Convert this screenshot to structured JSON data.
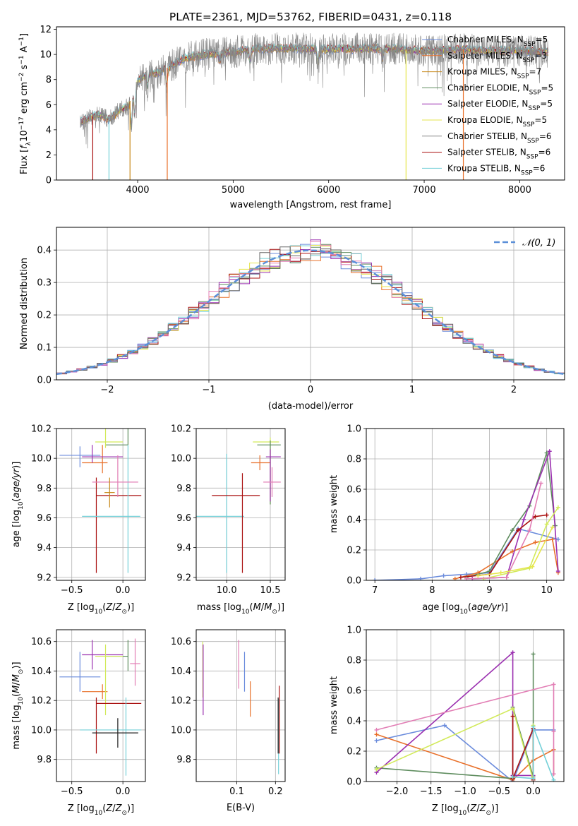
{
  "title": "PLATE=2361, MJD=53762, FIBERID=0431, z=0.118",
  "colors": [
    "#6a8bdc",
    "#e8702a",
    "#c8891b",
    "#5f8d5f",
    "#9b30b0",
    "#e6e64c",
    "#666666",
    "#aa1111",
    "#74d0d8",
    "#e27eb5",
    "#d2ea5a",
    "#1f1f1f"
  ],
  "chart_data": [
    {
      "id": "spectrum",
      "type": "line",
      "xlabel": "wavelength [Angstrom, rest frame]",
      "ylabel": "Flux [f_λ 10^-17 erg cm^-2 s^-1 A^-1]",
      "xlim": [
        3150,
        8470
      ],
      "ylim": [
        0,
        12.2
      ],
      "xticks": [
        4000,
        5000,
        6000,
        7000,
        8000
      ],
      "yticks": [
        0,
        2,
        4,
        6,
        8,
        10,
        12
      ],
      "legend_position": "top-right",
      "series": [
        {
          "name": "Chabrier MILES, N_SSP=5"
        },
        {
          "name": "Salpeter MILES, N_SSP=3"
        },
        {
          "name": "Kroupa MILES, N_SSP=7"
        },
        {
          "name": "Chabrier ELODIE, N_SSP=5"
        },
        {
          "name": "Salpeter ELODIE, N_SSP=5"
        },
        {
          "name": "Kroupa ELODIE, N_SSP=5"
        },
        {
          "name": "Chabrier STELIB, N_SSP=6"
        },
        {
          "name": "Salpeter STELIB, N_SSP=6"
        },
        {
          "name": "Kroupa STELIB, N_SSP=6"
        }
      ],
      "continuum": [
        [
          3400,
          4.6
        ],
        [
          3500,
          5.0
        ],
        [
          3600,
          5.2
        ],
        [
          3700,
          4.8
        ],
        [
          3800,
          5.5
        ],
        [
          3900,
          5.9
        ],
        [
          4000,
          7.9
        ],
        [
          4100,
          8.5
        ],
        [
          4200,
          8.5
        ],
        [
          4300,
          8.9
        ],
        [
          4400,
          9.3
        ],
        [
          4500,
          9.7
        ],
        [
          4700,
          10.0
        ],
        [
          5000,
          10.2
        ],
        [
          5200,
          10.4
        ],
        [
          5500,
          10.5
        ],
        [
          6000,
          10.4
        ],
        [
          6500,
          10.5
        ],
        [
          7000,
          10.3
        ],
        [
          7400,
          10.4
        ],
        [
          7700,
          10.3
        ],
        [
          8000,
          10.3
        ],
        [
          8300,
          10.2
        ]
      ]
    },
    {
      "id": "residuals",
      "type": "histogram",
      "xlabel": "(data-model)/error",
      "ylabel": "Normed distribution",
      "xlim": [
        -2.5,
        2.5
      ],
      "ylim": [
        0,
        0.47
      ],
      "xticks": [
        -2,
        -1,
        0,
        1,
        2
      ],
      "yticks": [
        0.0,
        0.1,
        0.2,
        0.3,
        0.4
      ],
      "reference_curve": {
        "name": "𝒩(0, 1)",
        "mean": 0,
        "sigma": 1,
        "style": "dashed"
      },
      "bin_width": 0.1,
      "grid": true,
      "legend_position": "top-right"
    },
    {
      "id": "age-vs-Z",
      "type": "scatter",
      "xlabel": "Z [log10(Z/Z☉)]",
      "ylabel": "age  [log10(age/yr)]",
      "xlim": [
        -0.65,
        0.22
      ],
      "ylim": [
        9.18,
        10.2
      ],
      "xticks": [
        -0.5,
        0.0
      ],
      "yticks": [
        9.2,
        9.4,
        9.6,
        9.8,
        10.0,
        10.2
      ],
      "points": [
        {
          "x": -0.42,
          "y": 10.02,
          "xerr": [
            0.2,
            0.2
          ],
          "yerr": [
            0.08,
            0.06
          ]
        },
        {
          "x": -0.2,
          "y": 9.97,
          "xerr": [
            0.2,
            0.05
          ],
          "yerr": [
            0.07,
            0.12
          ]
        },
        {
          "x": -0.3,
          "y": 10.01,
          "xerr": [
            0.1,
            0.3
          ],
          "yerr": [
            0.04,
            0.08
          ]
        },
        {
          "x": 0.05,
          "y": 10.09,
          "xerr": [
            0.22,
            0.0
          ],
          "yerr": [
            0.0,
            0.23
          ]
        },
        {
          "x": -0.17,
          "y": 10.11,
          "xerr": [
            0.1,
            0.17
          ],
          "yerr": [
            0.04,
            0.49
          ]
        },
        {
          "x": -0.26,
          "y": 9.75,
          "xerr": [
            0.0,
            0.44
          ],
          "yerr": [
            0.52,
            0.12
          ]
        },
        {
          "x": 0.05,
          "y": 9.61,
          "xerr": [
            0.45,
            0.12
          ],
          "yerr": [
            0.38,
            0.48
          ]
        },
        {
          "x": -0.05,
          "y": 9.84,
          "xerr": [
            0.25,
            0.2
          ],
          "yerr": [
            0.1,
            0.18
          ]
        },
        {
          "x": -0.13,
          "y": 9.77,
          "xerr": [
            0.05,
            0.05
          ],
          "yerr": [
            0.1,
            0.1
          ]
        }
      ]
    },
    {
      "id": "age-vs-mass",
      "type": "scatter",
      "xlabel": "mass [log10(M/M☉)]",
      "ylabel": "",
      "xlim": [
        9.65,
        10.67
      ],
      "ylim": [
        9.18,
        10.2
      ],
      "xticks": [
        10.0,
        10.5
      ],
      "yticks": [
        9.2,
        9.4,
        9.6,
        9.8,
        10.0,
        10.2
      ],
      "points": [
        {
          "x": 10.0,
          "y": 9.61,
          "xerr": [
            0.35,
            0.2
          ],
          "yerr": [
            0.38,
            0.42
          ]
        },
        {
          "x": 10.18,
          "y": 9.75,
          "xerr": [
            0.35,
            0.2
          ],
          "yerr": [
            0.52,
            0.15
          ]
        },
        {
          "x": 10.38,
          "y": 9.97,
          "xerr": [
            0.1,
            0.12
          ],
          "yerr": [
            0.05,
            0.05
          ]
        },
        {
          "x": 10.5,
          "y": 10.11,
          "xerr": [
            0.2,
            0.1
          ],
          "yerr": [
            0.42,
            0.03
          ]
        },
        {
          "x": 10.5,
          "y": 10.09,
          "xerr": [
            0.15,
            0.12
          ],
          "yerr": [
            0.4,
            0.03
          ]
        },
        {
          "x": 10.5,
          "y": 10.01,
          "xerr": [
            0.05,
            0.12
          ],
          "yerr": [
            0.3,
            0.05
          ]
        },
        {
          "x": 10.52,
          "y": 9.84,
          "xerr": [
            0.1,
            0.1
          ],
          "yerr": [
            0.1,
            0.1
          ]
        }
      ]
    },
    {
      "id": "weight-vs-age",
      "type": "line",
      "xlabel": "age  [log10(age/yr)]",
      "ylabel": "mass weight",
      "xlim": [
        6.85,
        10.3
      ],
      "ylim": [
        0,
        1.0
      ],
      "xticks": [
        7,
        8,
        9,
        10
      ],
      "yticks": [
        0.0,
        0.2,
        0.4,
        0.6,
        0.8,
        1.0
      ],
      "series": [
        {
          "x": [
            7.0,
            7.8,
            8.2,
            8.6,
            9.0,
            9.5,
            10.2
          ],
          "y": [
            0.0,
            0.01,
            0.03,
            0.04,
            0.05,
            0.34,
            0.27
          ]
        },
        {
          "x": [
            8.4,
            8.8,
            9.4,
            9.8,
            10.1,
            10.2
          ],
          "y": [
            0.01,
            0.05,
            0.19,
            0.25,
            0.27,
            0.05
          ]
        },
        {
          "x": [
            8.6,
            9.0,
            9.4,
            9.7,
            10.0,
            10.15
          ],
          "y": [
            0.02,
            0.06,
            0.33,
            0.49,
            0.84,
            0.36
          ]
        },
        {
          "x": [
            8.7,
            9.3,
            9.6,
            10.05,
            10.2
          ],
          "y": [
            0.01,
            0.02,
            0.4,
            0.85,
            0.06
          ]
        },
        {
          "x": [
            8.9,
            9.7,
            10.0,
            10.2
          ],
          "y": [
            0.01,
            0.08,
            0.37,
            0.48
          ]
        },
        {
          "x": [
            8.5,
            9.0,
            9.5,
            9.8,
            10.0
          ],
          "y": [
            0.02,
            0.04,
            0.33,
            0.42,
            0.43
          ]
        },
        {
          "x": [
            8.6,
            9.3,
            9.7,
            9.9
          ],
          "y": [
            0.01,
            0.02,
            0.33,
            0.64
          ]
        },
        {
          "x": [
            8.8,
            9.2,
            9.75,
            10.1
          ],
          "y": [
            0.03,
            0.05,
            0.09,
            0.35
          ]
        }
      ]
    },
    {
      "id": "mass-vs-Z",
      "type": "scatter",
      "xlabel": "Z [log10(Z/Z☉)]",
      "ylabel": "mass [log10(M/M☉)]",
      "xlim": [
        -0.65,
        0.22
      ],
      "ylim": [
        9.65,
        10.68
      ],
      "xticks": [
        -0.5,
        0.0
      ],
      "yticks": [
        9.8,
        10.0,
        10.2,
        10.4,
        10.6
      ],
      "points": [
        {
          "x": -0.42,
          "y": 10.36,
          "xerr": [
            0.2,
            0.2
          ],
          "yerr": [
            0.1,
            0.17
          ]
        },
        {
          "x": -0.2,
          "y": 10.26,
          "xerr": [
            0.2,
            0.05
          ],
          "yerr": [
            0.05,
            0.05
          ]
        },
        {
          "x": -0.3,
          "y": 10.51,
          "xerr": [
            0.1,
            0.3
          ],
          "yerr": [
            0.1,
            0.1
          ]
        },
        {
          "x": 0.05,
          "y": 10.5,
          "xerr": [
            0.22,
            0.0
          ],
          "yerr": [
            0.1,
            0.11
          ]
        },
        {
          "x": -0.17,
          "y": 10.5,
          "xerr": [
            0.1,
            0.17
          ],
          "yerr": [
            0.4,
            0.08
          ]
        },
        {
          "x": -0.26,
          "y": 10.18,
          "xerr": [
            0.0,
            0.44
          ],
          "yerr": [
            0.34,
            0.04
          ]
        },
        {
          "x": 0.03,
          "y": 10.0,
          "xerr": [
            0.45,
            0.15
          ],
          "yerr": [
            0.31,
            0.22
          ]
        },
        {
          "x": -0.05,
          "y": 9.98,
          "xerr": [
            0.25,
            0.2
          ],
          "yerr": [
            0.1,
            0.1
          ]
        },
        {
          "x": 0.12,
          "y": 10.45,
          "xerr": [
            0.05,
            0.05
          ],
          "yerr": [
            0.15,
            0.17
          ]
        }
      ]
    },
    {
      "id": "mass-vs-EBV",
      "type": "scatter",
      "xlabel": "E(B-V)",
      "ylabel": "",
      "xlim": [
        -0.005,
        0.225
      ],
      "ylim": [
        9.65,
        10.68
      ],
      "xticks": [
        0.1,
        0.2
      ],
      "yticks": [
        9.8,
        10.0,
        10.2,
        10.4,
        10.6
      ],
      "points": [
        {
          "x": 0.012,
          "y": 10.4,
          "xerr": [
            0,
            0
          ],
          "yerr": [
            0.18,
            0.2
          ]
        },
        {
          "x": 0.013,
          "y": 10.35,
          "xerr": [
            0,
            0
          ],
          "yerr": [
            0.25,
            0.23
          ]
        },
        {
          "x": 0.105,
          "y": 10.45,
          "xerr": [
            0,
            0
          ],
          "yerr": [
            0.17,
            0.16
          ]
        },
        {
          "x": 0.12,
          "y": 10.4,
          "xerr": [
            0,
            0
          ],
          "yerr": [
            0.14,
            0.13
          ]
        },
        {
          "x": 0.135,
          "y": 10.21,
          "xerr": [
            0,
            0
          ],
          "yerr": [
            0.12,
            0.12
          ]
        },
        {
          "x": 0.208,
          "y": 10.0,
          "xerr": [
            0,
            0
          ],
          "yerr": [
            0.3,
            0.21
          ]
        },
        {
          "x": 0.21,
          "y": 10.05,
          "xerr": [
            0,
            0
          ],
          "yerr": [
            0.21,
            0.25
          ]
        },
        {
          "x": 0.207,
          "y": 10.2,
          "xerr": [
            0,
            0
          ],
          "yerr": [
            0.36,
            0.02
          ]
        }
      ]
    },
    {
      "id": "weight-vs-Z",
      "type": "line",
      "xlabel": "Z [log10(Z/Z☉)]",
      "ylabel": "mass weight",
      "xlim": [
        -2.45,
        0.45
      ],
      "ylim": [
        0,
        1.0
      ],
      "xticks": [
        -2.0,
        -1.5,
        -1.0,
        -0.5,
        0.0
      ],
      "yticks": [
        0.0,
        0.2,
        0.4,
        0.6,
        0.8,
        1.0
      ],
      "series": [
        {
          "x": [
            -2.3,
            -1.3,
            -0.3,
            0.0,
            0.3
          ],
          "y": [
            0.27,
            0.37,
            0.0,
            0.34,
            0.34
          ]
        },
        {
          "x": [
            -2.3,
            -0.3,
            0.0,
            0.3,
            0.3
          ],
          "y": [
            0.31,
            0.01,
            0.14,
            0.21,
            0.05
          ]
        },
        {
          "x": [
            -2.3,
            -0.3,
            -0.3,
            0.0,
            0.0
          ],
          "y": [
            0.09,
            0.02,
            0.49,
            0.03,
            0.84
          ]
        },
        {
          "x": [
            -2.3,
            -0.3,
            -0.3,
            0.0
          ],
          "y": [
            0.06,
            0.85,
            0.04,
            0.04
          ]
        },
        {
          "x": [
            -2.3,
            -0.3,
            0.0,
            0.0
          ],
          "y": [
            0.08,
            0.48,
            0.01,
            0.37
          ]
        },
        {
          "x": [
            -0.3,
            -0.3,
            0.0,
            0.0
          ],
          "y": [
            0.43,
            0.02,
            0.35,
            0.01
          ]
        },
        {
          "x": [
            -2.3,
            0.3,
            0.3,
            0.3
          ],
          "y": [
            0.34,
            0.64,
            0.33,
            0.05
          ]
        },
        {
          "x": [
            -0.3,
            0.0,
            0.0,
            0.3
          ],
          "y": [
            0.03,
            0.02,
            0.36,
            0.01
          ]
        }
      ]
    }
  ]
}
